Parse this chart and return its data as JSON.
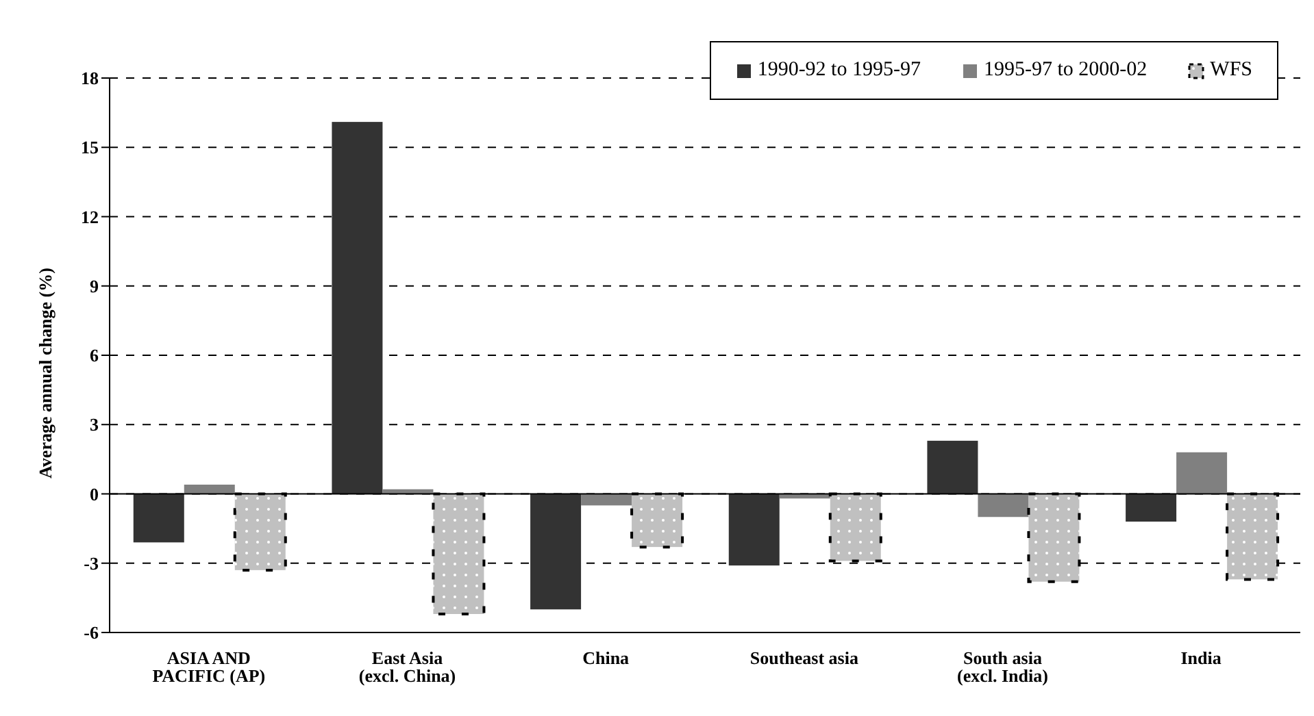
{
  "chart_data": {
    "type": "bar",
    "ylabel": "Average annual change (%)",
    "categories": [
      "ASIA AND PACIFIC (AP)",
      "East Asia (excl. China)",
      "China",
      "Southeast asia",
      "South asia (excl. India)",
      "India"
    ],
    "series": [
      {
        "name": "1990-92 to 1995-97",
        "color": "#333333",
        "values": [
          -2.1,
          16.1,
          -5.0,
          -3.1,
          2.3,
          -1.2
        ]
      },
      {
        "name": "1995-97 to 2000-02",
        "color": "#808080",
        "values": [
          0.4,
          0.2,
          -0.5,
          -0.2,
          -1.0,
          1.8
        ]
      },
      {
        "name": "WFS",
        "color": "#c0c0c0",
        "line_style": "dashed",
        "values": [
          -3.3,
          -5.2,
          -2.3,
          -2.9,
          -3.8,
          -3.7
        ]
      }
    ],
    "ylim": [
      -6,
      18
    ],
    "yticks": [
      -6,
      -3,
      0,
      3,
      6,
      9,
      12,
      15,
      18
    ],
    "grid": "y",
    "legend": "top right"
  }
}
